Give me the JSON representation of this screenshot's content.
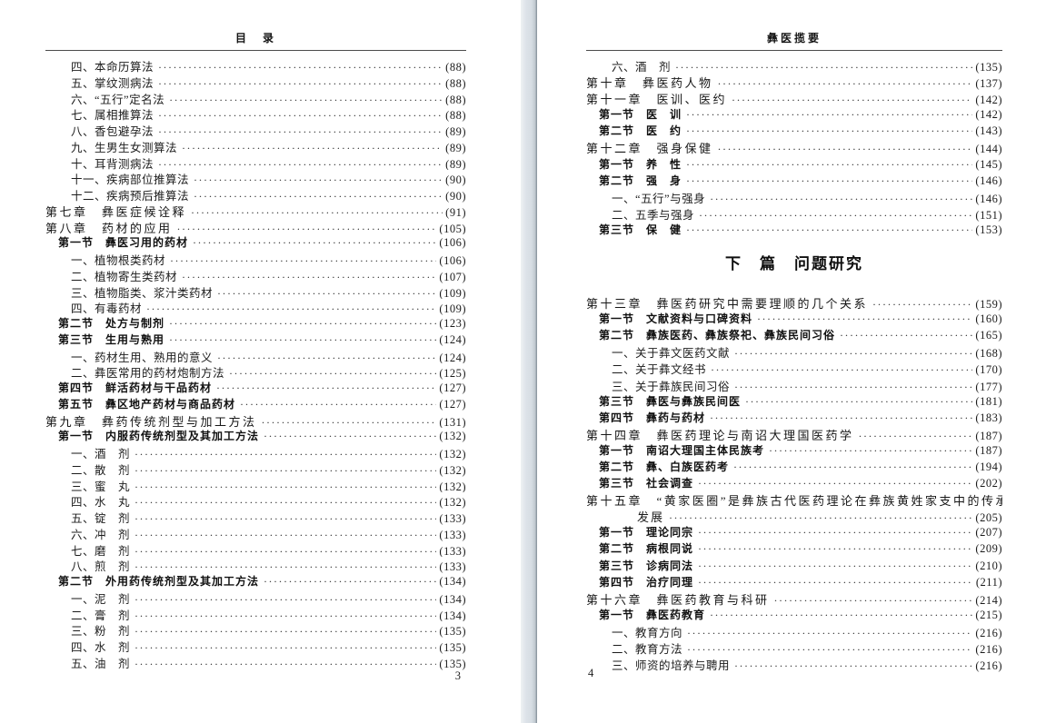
{
  "colors": {
    "paper": "#ffffff",
    "gutter": "#dde3e9",
    "text": "#1c1c1c",
    "rule": "#4c4c4c"
  },
  "left_page": {
    "header": "目　录",
    "page_number": "3",
    "entries": [
      {
        "level": "item",
        "title": "四、本命历算法",
        "page": "(88)"
      },
      {
        "level": "item",
        "title": "五、掌纹测病法",
        "page": "(88)"
      },
      {
        "level": "item",
        "title": "六、“五行”定名法",
        "page": "(88)"
      },
      {
        "level": "item",
        "title": "七、属相推算法",
        "page": "(88)"
      },
      {
        "level": "item",
        "title": "八、香包避孕法",
        "page": "(89)"
      },
      {
        "level": "item",
        "title": "九、生男生女测算法",
        "page": "(89)"
      },
      {
        "level": "item",
        "title": "十、耳背测病法",
        "page": "(89)"
      },
      {
        "level": "item",
        "title": "十一、疾病部位推算法",
        "page": "(90)"
      },
      {
        "level": "item",
        "title": "十二、疾病预后推算法",
        "page": "(90)"
      },
      {
        "level": "chapter",
        "title": "第七章　彝医症候诠释",
        "page": "(91)"
      },
      {
        "level": "chapter",
        "title": "第八章　药材的应用",
        "page": "(105)"
      },
      {
        "level": "section",
        "title": "第一节　彝医习用的药材",
        "page": "(106)"
      },
      {
        "level": "item",
        "title": "一、植物根类药材",
        "page": "(106)"
      },
      {
        "level": "item",
        "title": "二、植物寄生类药材",
        "page": "(107)"
      },
      {
        "level": "item",
        "title": "三、植物脂类、浆汁类药材",
        "page": "(109)"
      },
      {
        "level": "item",
        "title": "四、有毒药材",
        "page": "(109)"
      },
      {
        "level": "section",
        "title": "第二节　处方与制剂",
        "page": "(123)"
      },
      {
        "level": "section",
        "title": "第三节　生用与熟用",
        "page": "(124)"
      },
      {
        "level": "item",
        "title": "一、药材生用、熟用的意义",
        "page": "(124)"
      },
      {
        "level": "item",
        "title": "二、彝医常用的药材炮制方法",
        "page": "(125)"
      },
      {
        "level": "section",
        "title": "第四节　鲜活药材与干品药材",
        "page": "(127)"
      },
      {
        "level": "section",
        "title": "第五节　彝区地产药材与商品药材",
        "page": "(127)"
      },
      {
        "level": "chapter",
        "title": "第九章　彝药传统剂型与加工方法",
        "page": "(131)"
      },
      {
        "level": "section",
        "title": "第一节　内服药传统剂型及其加工方法",
        "page": "(132)"
      },
      {
        "level": "item",
        "title": "一、酒　剂",
        "page": "(132)"
      },
      {
        "level": "item",
        "title": "二、散　剂",
        "page": "(132)"
      },
      {
        "level": "item",
        "title": "三、蜜　丸",
        "page": "(132)"
      },
      {
        "level": "item",
        "title": "四、水　丸",
        "page": "(132)"
      },
      {
        "level": "item",
        "title": "五、锭　剂",
        "page": "(133)"
      },
      {
        "level": "item",
        "title": "六、冲　剂",
        "page": "(133)"
      },
      {
        "level": "item",
        "title": "七、磨　剂",
        "page": "(133)"
      },
      {
        "level": "item",
        "title": "八、煎　剂",
        "page": "(133)"
      },
      {
        "level": "section",
        "title": "第二节　外用药传统剂型及其加工方法",
        "page": "(134)"
      },
      {
        "level": "item",
        "title": "一、泥　剂",
        "page": "(134)"
      },
      {
        "level": "item",
        "title": "二、膏　剂",
        "page": "(134)"
      },
      {
        "level": "item",
        "title": "三、粉　剂",
        "page": "(135)"
      },
      {
        "level": "item",
        "title": "四、水　剂",
        "page": "(135)"
      },
      {
        "level": "item",
        "title": "五、油　剂",
        "page": "(135)"
      }
    ]
  },
  "right_page": {
    "header": "彝医揽要",
    "page_number": "4",
    "entries": [
      {
        "level": "item",
        "title": "六、酒　剂",
        "page": "(135)"
      },
      {
        "level": "chapter",
        "title": "第十章　彝医药人物",
        "page": "(137)"
      },
      {
        "level": "chapter",
        "title": "第十一章　医训、医约",
        "page": "(142)"
      },
      {
        "level": "section",
        "title": "第一节　医　训",
        "page": "(142)"
      },
      {
        "level": "section",
        "title": "第二节　医　约",
        "page": "(143)"
      },
      {
        "level": "chapter",
        "title": "第十二章　强身保健",
        "page": "(144)"
      },
      {
        "level": "section",
        "title": "第一节　养　性",
        "page": "(145)"
      },
      {
        "level": "section",
        "title": "第二节　强　身",
        "page": "(146)"
      },
      {
        "level": "item",
        "title": "一、“五行”与强身",
        "page": "(146)"
      },
      {
        "level": "item",
        "title": "二、五季与强身",
        "page": "(151)"
      },
      {
        "level": "section",
        "title": "第三节　保　健",
        "page": "(153)"
      },
      {
        "level": "part",
        "title": "下　篇　问题研究"
      },
      {
        "level": "chapter",
        "title": "第十三章　彝医药研究中需要理顺的几个关系",
        "page": "(159)"
      },
      {
        "level": "section",
        "title": "第一节　文献资料与口碑资料",
        "page": "(160)"
      },
      {
        "level": "section",
        "title": "第二节　彝族医药、彝族祭祀、彝族民间习俗",
        "page": "(165)"
      },
      {
        "level": "item",
        "title": "一、关于彝文医药文献",
        "page": "(168)"
      },
      {
        "level": "item",
        "title": "二、关于彝文经书",
        "page": "(170)"
      },
      {
        "level": "item",
        "title": "三、关于彝族民间习俗",
        "page": "(177)"
      },
      {
        "level": "section",
        "title": "第三节　彝医与彝族民间医",
        "page": "(181)"
      },
      {
        "level": "section",
        "title": "第四节　彝药与药材",
        "page": "(183)"
      },
      {
        "level": "chapter",
        "title": "第十四章　彝医药理论与南诏大理国医药学",
        "page": "(187)"
      },
      {
        "level": "section",
        "title": "第一节　南诏大理国主体民族考",
        "page": "(187)"
      },
      {
        "level": "section",
        "title": "第二节　彝、白族医药考",
        "page": "(194)"
      },
      {
        "level": "section",
        "title": "第三节　社会调查",
        "page": "(202)"
      },
      {
        "level": "chapter",
        "title": "第十五章　“黄家医圈”是彝族古代医药理论在彝族黄姓家支中的传承与",
        "page": ""
      },
      {
        "level": "continuation",
        "title": "发展",
        "page": "(205)"
      },
      {
        "level": "section",
        "title": "第一节　理论同宗",
        "page": "(207)"
      },
      {
        "level": "section",
        "title": "第二节　病根同说",
        "page": "(209)"
      },
      {
        "level": "section",
        "title": "第三节　诊病同法",
        "page": "(210)"
      },
      {
        "level": "section",
        "title": "第四节　治疗同理",
        "page": "(211)"
      },
      {
        "level": "chapter",
        "title": "第十六章　彝医药教育与科研",
        "page": "(214)"
      },
      {
        "level": "section",
        "title": "第一节　彝医药教育",
        "page": "(215)"
      },
      {
        "level": "item",
        "title": "一、教育方向",
        "page": "(216)"
      },
      {
        "level": "item",
        "title": "二、教育方法",
        "page": "(216)"
      },
      {
        "level": "item",
        "title": "三、师资的培养与聘用",
        "page": "(216)"
      }
    ]
  }
}
